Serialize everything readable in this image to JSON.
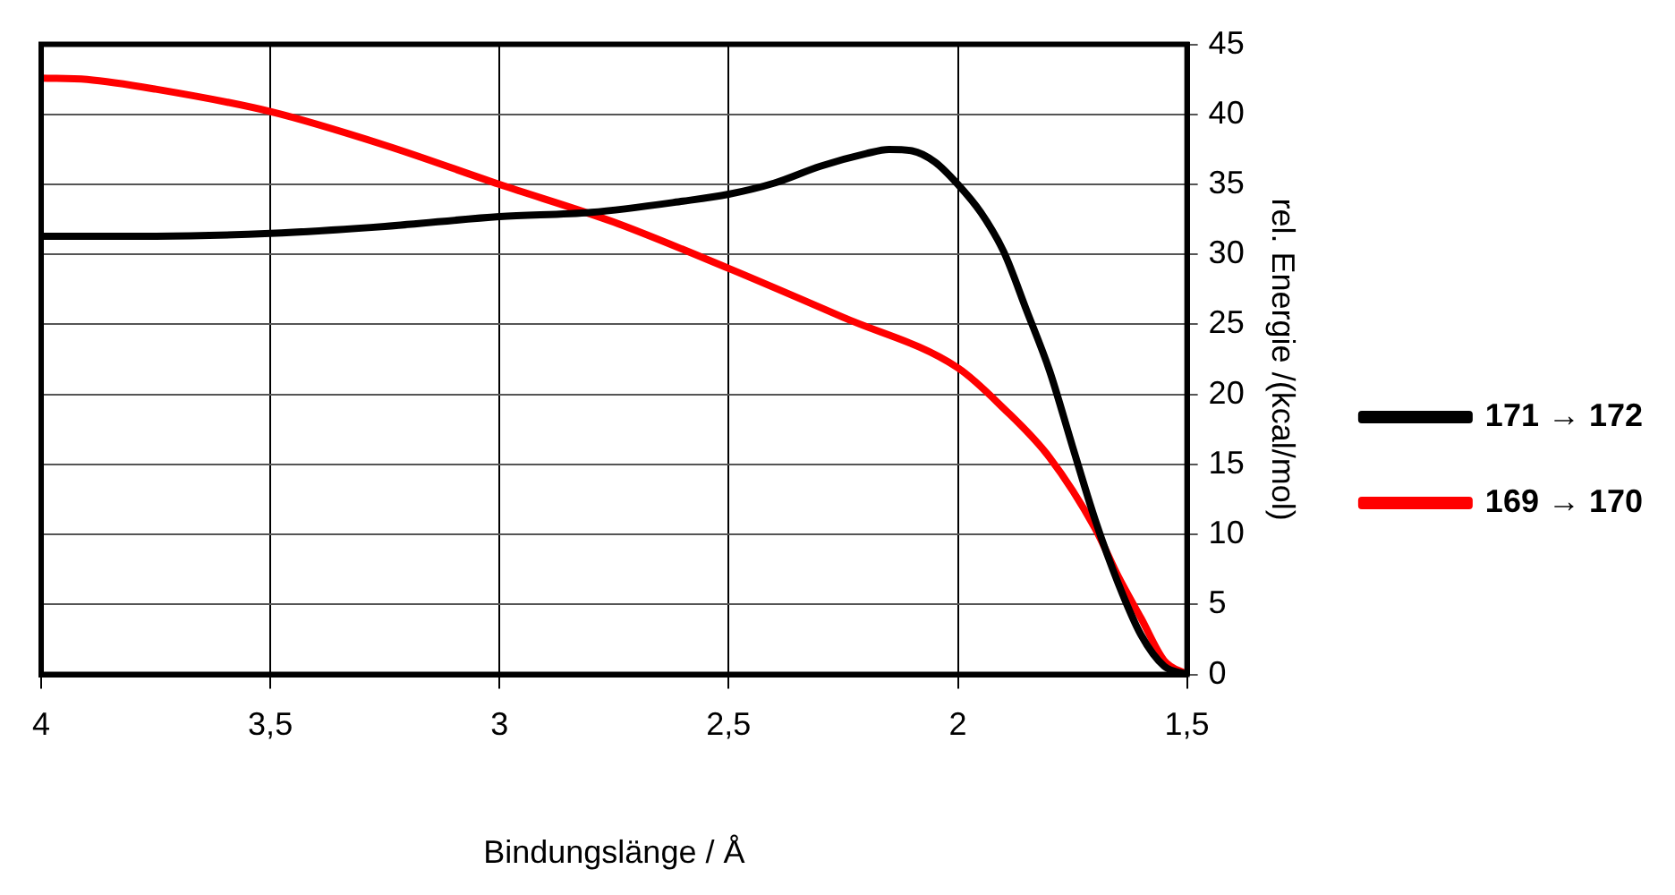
{
  "chart_data": {
    "type": "line",
    "xlabel": "Bindungslänge / Å",
    "ylabel": "rel. Energie /(kcal/mol)",
    "xlim": [
      4,
      1.5
    ],
    "xticks": [
      {
        "value": 4,
        "label": "4"
      },
      {
        "value": 3.5,
        "label": "3,5"
      },
      {
        "value": 3,
        "label": "3"
      },
      {
        "value": 2.5,
        "label": "2,5"
      },
      {
        "value": 2,
        "label": "2"
      },
      {
        "value": 1.5,
        "label": "1,5"
      }
    ],
    "ylim": [
      0,
      45
    ],
    "yticks": [
      0,
      5,
      10,
      15,
      20,
      25,
      30,
      35,
      40,
      45
    ],
    "grid": true,
    "legend": "right",
    "marker": "none",
    "line_style": "solid",
    "series": [
      {
        "name": "171 → 172",
        "color": "#000000",
        "x": [
          4,
          3.75,
          3.5,
          3.25,
          3.0,
          2.8,
          2.6,
          2.5,
          2.4,
          2.3,
          2.2,
          2.15,
          2.1,
          2.05,
          2.0,
          1.95,
          1.9,
          1.85,
          1.8,
          1.75,
          1.7,
          1.65,
          1.6,
          1.55,
          1.5
        ],
        "values": [
          31.3,
          31.3,
          31.5,
          32.0,
          32.7,
          33.0,
          33.8,
          34.3,
          35.1,
          36.3,
          37.2,
          37.5,
          37.4,
          36.6,
          35.0,
          33.0,
          30.2,
          26.0,
          21.7,
          16.3,
          11.0,
          6.5,
          2.8,
          0.6,
          0
        ]
      },
      {
        "name": "169 → 170",
        "color": "#ff0000",
        "x": [
          4,
          3.9,
          3.75,
          3.5,
          3.25,
          3.0,
          2.75,
          2.5,
          2.25,
          2.0,
          1.9,
          1.8,
          1.7,
          1.65,
          1.6,
          1.55,
          1.5
        ],
        "values": [
          42.6,
          42.5,
          41.8,
          40.2,
          37.8,
          35.0,
          32.3,
          29.0,
          25.5,
          21.9,
          19.0,
          15.5,
          10.4,
          7.0,
          4.0,
          1.0,
          0
        ]
      }
    ]
  }
}
